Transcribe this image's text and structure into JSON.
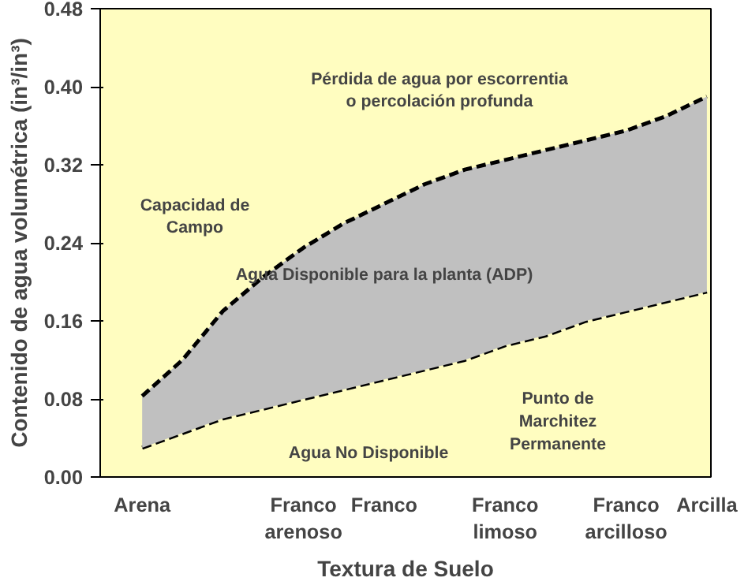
{
  "chart_data": {
    "type": "area",
    "xlabel": "Textura de Suelo",
    "ylabel": "Contenido de agua volumétrica (in³/in³)",
    "categories": [
      "Arena",
      null,
      null,
      null,
      "Franco\narenoso",
      null,
      "Franco",
      null,
      null,
      "Franco\nlimoso",
      null,
      null,
      "Franco\narcilloso",
      null,
      "Arcilla"
    ],
    "ylim": [
      0,
      0.48
    ],
    "yticks": [
      {
        "value": 0,
        "label": "0.00"
      },
      {
        "value": 0.08,
        "label": "0.08"
      },
      {
        "value": 0.16,
        "label": "0.16"
      },
      {
        "value": 0.24,
        "label": "0.24"
      },
      {
        "value": 0.32,
        "label": "0.32"
      },
      {
        "value": 0.4,
        "label": "0.40"
      },
      {
        "value": 0.48,
        "label": "0.48"
      }
    ],
    "grid": false,
    "line_style": "dashed",
    "stacked": true,
    "series": [
      {
        "color": "#fffdc0",
        "values": [
          0.03,
          0.045,
          0.06,
          0.07,
          0.08,
          0.09,
          0.1,
          0.11,
          0.12,
          0.135,
          0.145,
          0.16,
          0.17,
          0.18,
          0.19
        ]
      },
      {
        "color": "#c0c0c0",
        "values": [
          0.053,
          0.075,
          0.11,
          0.135,
          0.155,
          0.17,
          0.18,
          0.19,
          0.195,
          0.19,
          0.19,
          0.185,
          0.185,
          0.19,
          0.2
        ]
      }
    ],
    "annotations": [
      "Pérdida de agua por escorrentia\no percolación profunda",
      "Capacidad de\nCampo",
      "Agua Disponible para la planta (ADP)",
      "Punto de\nMarchitez\nPermanente",
      "Agua No Disponible"
    ]
  }
}
